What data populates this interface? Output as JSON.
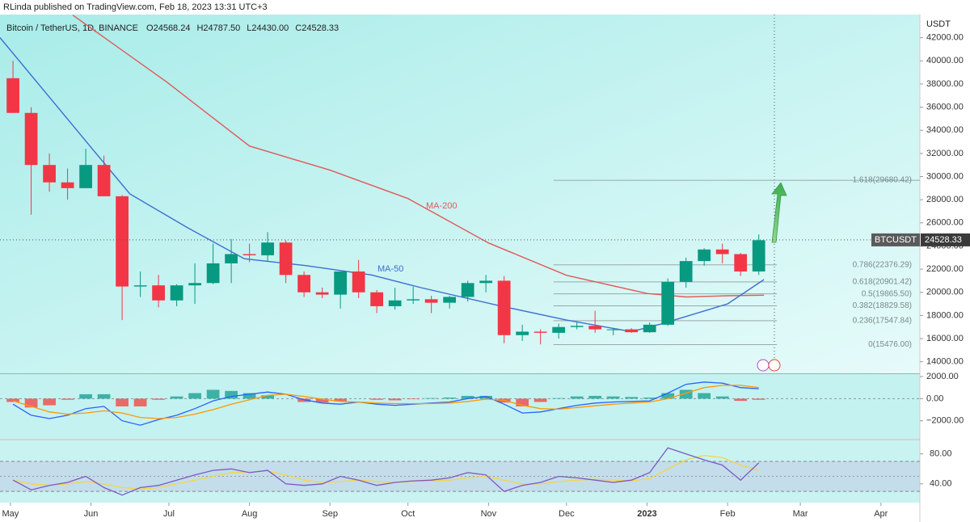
{
  "header": "RLinda published on TradingView.com, Feb 18, 2023 13:31 UTC+3",
  "chart_data": {
    "type": "candlestick",
    "title": "Bitcoin / TetherUS, 1D, BINANCE",
    "ohlc_labels": [
      "O24568.24",
      "H24787.50",
      "L24430.00",
      "C24528.33"
    ],
    "currency": "USDT",
    "symbol": "BTCUSDT",
    "last_price": 24528.33,
    "up_color": "#089981",
    "down_color": "#f23645",
    "xlim": [
      -4,
      350
    ],
    "xticks": [
      {
        "value": 0,
        "label": "May"
      },
      {
        "value": 31,
        "label": "Jun"
      },
      {
        "value": 61,
        "label": "Jul"
      },
      {
        "value": 92,
        "label": "Aug"
      },
      {
        "value": 123,
        "label": "Sep"
      },
      {
        "value": 153,
        "label": "Oct"
      },
      {
        "value": 184,
        "label": "Nov"
      },
      {
        "value": 214,
        "label": "Dec"
      },
      {
        "value": 245,
        "label": "2023"
      },
      {
        "value": 276,
        "label": "Feb"
      },
      {
        "value": 304,
        "label": "Mar"
      },
      {
        "value": 335,
        "label": "Apr"
      }
    ],
    "ylim": [
      13000,
      44000
    ],
    "yticks": [
      {
        "value": 14000,
        "label": "14000.00"
      },
      {
        "value": 16000,
        "label": "16000.00"
      },
      {
        "value": 18000,
        "label": "18000.00"
      },
      {
        "value": 20000,
        "label": "20000.00"
      },
      {
        "value": 22000,
        "label": "22000.00"
      },
      {
        "value": 24000,
        "label": "24000.00"
      },
      {
        "value": 26000,
        "label": "26000.00"
      },
      {
        "value": 28000,
        "label": "28000.00"
      },
      {
        "value": 30000,
        "label": "30000.00"
      },
      {
        "value": 32000,
        "label": "32000.00"
      },
      {
        "value": 34000,
        "label": "34000.00"
      },
      {
        "value": 36000,
        "label": "36000.00"
      },
      {
        "value": 38000,
        "label": "38000.00"
      },
      {
        "value": 40000,
        "label": "40000.00"
      },
      {
        "value": 42000,
        "label": "42000.00"
      }
    ],
    "candles": {
      "x": [
        1,
        8,
        15,
        22,
        29,
        36,
        43,
        50,
        57,
        64,
        71,
        78,
        85,
        92,
        99,
        106,
        113,
        120,
        127,
        134,
        141,
        148,
        155,
        162,
        169,
        176,
        183,
        190,
        197,
        204,
        211,
        218,
        225,
        232,
        239,
        246,
        253,
        260,
        267,
        274,
        281,
        288
      ],
      "open": [
        38500,
        35500,
        31000,
        29500,
        29000,
        31000,
        28300,
        20500,
        20600,
        19300,
        20600,
        20800,
        22500,
        23300,
        23200,
        24300,
        21500,
        20000,
        19800,
        21800,
        20000,
        18800,
        19300,
        19400,
        19100,
        19600,
        20800,
        21000,
        16300,
        16600,
        16500,
        17000,
        17100,
        16800,
        16800,
        16550,
        17200,
        20900,
        22700,
        23700,
        23300,
        21800
      ],
      "high": [
        40000,
        36000,
        32000,
        30700,
        32400,
        31800,
        28400,
        21800,
        21500,
        20700,
        22500,
        24200,
        24600,
        24200,
        25200,
        24500,
        21800,
        20400,
        20600,
        22800,
        20200,
        20400,
        20500,
        19700,
        19700,
        21000,
        21500,
        21400,
        17200,
        16800,
        17300,
        17400,
        18400,
        16900,
        16900,
        17400,
        21200,
        23000,
        23800,
        24200,
        23400,
        25000
      ],
      "low": [
        35500,
        26700,
        28700,
        28000,
        29000,
        28800,
        17600,
        19600,
        18700,
        18800,
        19000,
        20700,
        20800,
        22600,
        22700,
        20800,
        19600,
        19500,
        18600,
        19500,
        18200,
        18500,
        19000,
        18200,
        18600,
        19200,
        20000,
        15600,
        15800,
        15500,
        16000,
        16800,
        16500,
        16300,
        16500,
        16500,
        17100,
        20400,
        22300,
        22500,
        21400,
        21500
      ],
      "close": [
        35500,
        31000,
        29500,
        29000,
        31000,
        28300,
        20500,
        20600,
        19300,
        20600,
        20800,
        22500,
        23300,
        23200,
        24300,
        21500,
        20000,
        19800,
        21800,
        20000,
        18800,
        19300,
        19400,
        19100,
        19600,
        20800,
        21000,
        16300,
        16600,
        16500,
        17000,
        17100,
        16800,
        16800,
        16550,
        17200,
        20900,
        22700,
        23700,
        23300,
        21800,
        24500
      ]
    },
    "ma_series": [
      {
        "name": "MA-200",
        "color": "#e05a5a",
        "x": [
          24,
          60,
          92,
          123,
          153,
          184,
          214,
          245,
          260,
          276,
          290
        ],
        "values": [
          43950,
          38200,
          32640,
          30550,
          28100,
          24260,
          21470,
          19900,
          19600,
          19700,
          19750
        ]
      },
      {
        "name": "MA-50",
        "color": "#3d6fd1",
        "x": [
          -4,
          33,
          46,
          68,
          90,
          114,
          139,
          158,
          189,
          214,
          239,
          251,
          276,
          290
        ],
        "values": [
          42000,
          32000,
          28500,
          25600,
          22900,
          22300,
          21500,
          20400,
          18800,
          17600,
          16600,
          17300,
          19000,
          21100
        ]
      }
    ],
    "fib_levels": [
      {
        "value": 29680.42,
        "label": "1.618(29680.42)"
      },
      {
        "value": 22376.29,
        "label": "0.786(22376.29)"
      },
      {
        "value": 20901.42,
        "label": "0.618(20901.42)"
      },
      {
        "value": 19865.5,
        "label": "0.5(19865.50)"
      },
      {
        "value": 18829.58,
        "label": "0.382(18829.58)"
      },
      {
        "value": 17547.84,
        "label": "0.236(17547.84)"
      },
      {
        "value": 15476.0,
        "label": "0(15476.00)"
      }
    ],
    "fib_x": [
      209,
      295
    ],
    "macd": {
      "ylim": [
        -3630,
        2220
      ],
      "yticks": [
        {
          "value": -2000,
          "label": "−2000.00"
        },
        {
          "value": 0,
          "label": "0.00"
        },
        {
          "value": 2000,
          "label": "2000.00"
        }
      ],
      "macd_color": "#2962ff",
      "signal_color": "#ff9800",
      "macd": [
        -500,
        -1500,
        -1800,
        -1500,
        -900,
        -700,
        -2000,
        -2400,
        -1900,
        -1500,
        -900,
        -200,
        200,
        400,
        600,
        400,
        -100,
        -400,
        -500,
        -300,
        -500,
        -600,
        -500,
        -400,
        -300,
        0,
        200,
        -500,
        -1300,
        -1200,
        -900,
        -600,
        -400,
        -300,
        -250,
        -200,
        500,
        1300,
        1500,
        1400,
        1000,
        900
      ],
      "signal": [
        -200,
        -700,
        -1200,
        -1400,
        -1300,
        -1100,
        -1300,
        -1700,
        -1800,
        -1700,
        -1400,
        -1000,
        -500,
        -100,
        300,
        400,
        200,
        -50,
        -250,
        -300,
        -400,
        -450,
        -450,
        -450,
        -400,
        -250,
        -50,
        -150,
        -600,
        -900,
        -950,
        -800,
        -650,
        -500,
        -400,
        -300,
        0,
        500,
        1000,
        1200,
        1200,
        1000
      ],
      "histogram": [
        -300,
        -800,
        -600,
        -100,
        400,
        400,
        -700,
        -700,
        -100,
        200,
        500,
        800,
        700,
        500,
        300,
        0,
        -300,
        -350,
        -250,
        0,
        -100,
        -150,
        -50,
        50,
        100,
        250,
        250,
        -350,
        -700,
        -300,
        50,
        200,
        250,
        200,
        150,
        100,
        500,
        800,
        500,
        200,
        -200,
        -100
      ]
    },
    "rsi": {
      "ylim": [
        15,
        98
      ],
      "yticks": [
        {
          "value": 40,
          "label": "40.00"
        },
        {
          "value": 80,
          "label": "80.00"
        }
      ],
      "band": [
        30,
        70
      ],
      "midline": 50,
      "color": "#7e57c2",
      "ma_color": "#f5d547",
      "values": [
        45,
        32,
        38,
        42,
        50,
        35,
        25,
        35,
        38,
        45,
        52,
        58,
        60,
        55,
        58,
        40,
        38,
        40,
        50,
        45,
        38,
        42,
        44,
        45,
        48,
        55,
        52,
        30,
        38,
        42,
        50,
        48,
        45,
        42,
        45,
        55,
        88,
        80,
        72,
        65,
        45,
        68
      ],
      "ma": [
        45,
        40,
        38,
        40,
        43,
        40,
        35,
        33,
        35,
        40,
        45,
        50,
        55,
        56,
        57,
        52,
        45,
        42,
        43,
        45,
        43,
        42,
        43,
        44,
        45,
        48,
        50,
        45,
        40,
        40,
        43,
        45,
        46,
        45,
        44,
        47,
        60,
        72,
        78,
        75,
        65,
        58
      ]
    }
  }
}
